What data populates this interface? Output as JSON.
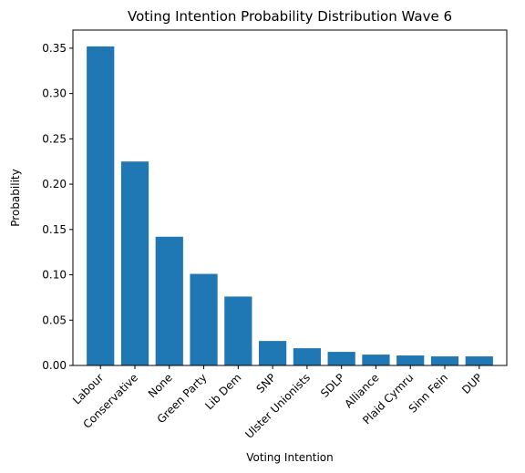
{
  "chart_data": {
    "type": "bar",
    "title": "Voting Intention Probability Distribution Wave 6",
    "xlabel": "Voting Intention",
    "ylabel": "Probability",
    "categories": [
      "Labour",
      "Conservative",
      "None",
      "Green Party",
      "Lib Dem",
      "SNP",
      "Ulster Unionists",
      "SDLP",
      "Alliance",
      "Plaid Cymru",
      "Sinn Fein",
      "DUP"
    ],
    "values": [
      0.352,
      0.225,
      0.142,
      0.101,
      0.076,
      0.027,
      0.019,
      0.015,
      0.012,
      0.011,
      0.01,
      0.01
    ],
    "ylim": [
      0,
      0.37
    ],
    "yticks": [
      "0.00",
      "0.05",
      "0.10",
      "0.15",
      "0.20",
      "0.25",
      "0.30",
      "0.35"
    ],
    "bar_color": "#1f77b4",
    "grid": false,
    "legend": false
  }
}
